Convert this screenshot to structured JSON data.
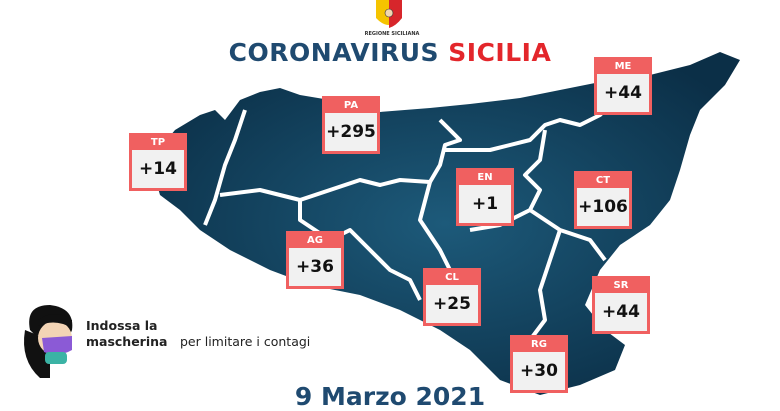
{
  "header": {
    "logo_text": "REGIONE SICILIANA",
    "title_part1": "CORONAVIRUS",
    "title_part2": "SICILIA"
  },
  "provinces": [
    {
      "code": "TP",
      "value": "+14"
    },
    {
      "code": "PA",
      "value": "+295"
    },
    {
      "code": "ME",
      "value": "+44"
    },
    {
      "code": "EN",
      "value": "+1"
    },
    {
      "code": "CT",
      "value": "+106"
    },
    {
      "code": "AG",
      "value": "+36"
    },
    {
      "code": "CL",
      "value": "+25"
    },
    {
      "code": "SR",
      "value": "+44"
    },
    {
      "code": "RG",
      "value": "+30"
    }
  ],
  "tip": {
    "bold": "Indossa la mascherina",
    "rest": "per limitare i contagi"
  },
  "date": "9 Marzo 2021",
  "colors": {
    "map": "#0e3a55",
    "box": "#f06060",
    "title_blue": "#1f4a70",
    "title_red": "#e3262b"
  }
}
